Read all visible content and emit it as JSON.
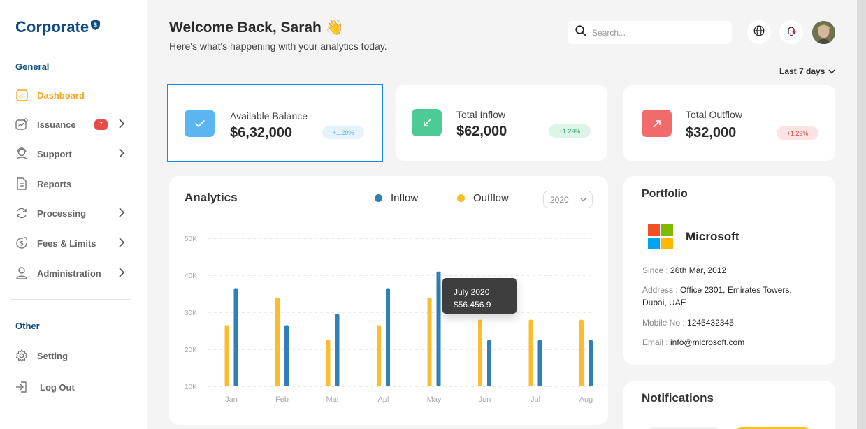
{
  "app": {
    "brand": "Corporate"
  },
  "sidebar": {
    "general_label": "General",
    "other_label": "Other",
    "items": [
      {
        "label": "Dashboard",
        "icon": "chart-icon",
        "active": true
      },
      {
        "label": "Issuance",
        "icon": "issuance-icon",
        "badge": "7",
        "chevron": true
      },
      {
        "label": "Support",
        "icon": "support-icon",
        "chevron": true
      },
      {
        "label": "Reports",
        "icon": "document-icon"
      },
      {
        "label": "Processing",
        "icon": "refresh-icon",
        "chevron": true
      },
      {
        "label": "Fees & Limits",
        "icon": "fees-icon",
        "chevron": true
      },
      {
        "label": "Administration",
        "icon": "user-icon",
        "chevron": true
      }
    ],
    "other_items": [
      {
        "label": "Setting",
        "icon": "gear-icon"
      },
      {
        "label": "Log Out",
        "icon": "logout-icon"
      }
    ]
  },
  "header": {
    "welcome": "Welcome Back, Sarah 👋",
    "subtitle": "Here's what's happening with your analytics today.",
    "search_placeholder": "Search...",
    "range": "Last 7 days"
  },
  "stats": [
    {
      "label": "Available Balance",
      "value": "$6,32,000",
      "change": "+1.29%",
      "color": "#5bb5f0"
    },
    {
      "label": "Total Inflow",
      "value": "$62,000",
      "change": "+1.29%",
      "color": "#4ccb94"
    },
    {
      "label": "Total Outflow",
      "value": "$32,000",
      "change": "+1.29%",
      "color": "#f26b6b"
    }
  ],
  "analytics": {
    "title": "Analytics",
    "legend_inflow": "Inflow",
    "legend_outflow": "Outflow",
    "year": "2020",
    "tooltip_title": "July 2020",
    "tooltip_value": "$56.456.9",
    "colors": {
      "inflow": "#2f7fb8",
      "outflow": "#fbbd2e"
    }
  },
  "chart_data": {
    "type": "bar",
    "categories": [
      "Jan",
      "Feb",
      "Mar",
      "Apl",
      "May",
      "Jun",
      "Jul",
      "Aug"
    ],
    "y_ticks": [
      "10K",
      "20K",
      "30K",
      "40K",
      "50K"
    ],
    "ylim": [
      10000,
      50000
    ],
    "grid": true,
    "series": [
      {
        "name": "Outflow",
        "values": [
          26500,
          34000,
          22500,
          26500,
          34000,
          28000,
          28000,
          28000
        ]
      },
      {
        "name": "Inflow",
        "values": [
          36500,
          26500,
          29500,
          36500,
          41000,
          22500,
          22500,
          22500
        ]
      }
    ]
  },
  "portfolio": {
    "title": "Portfolio",
    "company": "Microsoft",
    "since_label": "Since : ",
    "since_value": "26th Mar, 2012",
    "address_label": "Address : ",
    "address_value": "Office 2301, Emirates Towers, Dubai, UAE",
    "mobile_label": "Mobile No : ",
    "mobile_value": "1245432345",
    "email_label": "Email : ",
    "email_value": "info@microsoft.com"
  },
  "notifications": {
    "title": "Notifications"
  }
}
